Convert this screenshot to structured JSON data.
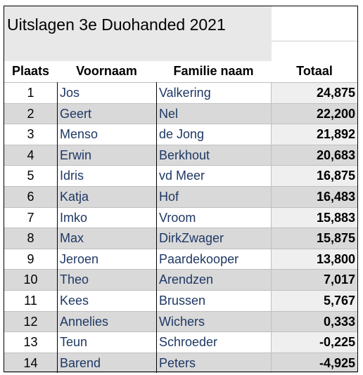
{
  "header": {
    "title": "Uitslagen 3e Duohanded 2021"
  },
  "table": {
    "columns": [
      "Plaats",
      "Voornaam",
      "Familie naam",
      "Totaal"
    ],
    "rows": [
      [
        "1",
        "Jos",
        "Valkering",
        "24,875"
      ],
      [
        "2",
        "Geert",
        "Nel",
        "22,200"
      ],
      [
        "3",
        "Menso",
        "de Jong",
        "21,892"
      ],
      [
        "4",
        "Erwin",
        "Berkhout",
        "20,683"
      ],
      [
        "5",
        "Idris",
        "vd Meer",
        "16,875"
      ],
      [
        "6",
        "Katja",
        "Hof",
        "16,483"
      ],
      [
        "7",
        "Imko",
        "Vroom",
        "15,883"
      ],
      [
        "8",
        "Max",
        "DirkZwager",
        "15,875"
      ],
      [
        "9",
        "Jeroen",
        "Paardekooper",
        "13,800"
      ],
      [
        "10",
        "Theo",
        "Arendzen",
        "7,017"
      ],
      [
        "11",
        "Kees",
        "Brussen",
        "5,767"
      ],
      [
        "12",
        "Annelies",
        "Wichers",
        "0,333"
      ],
      [
        "13",
        "Teun",
        "Schroeder",
        "-0,225"
      ],
      [
        "14",
        "Barend",
        "Peters",
        "-4,925"
      ]
    ]
  }
}
